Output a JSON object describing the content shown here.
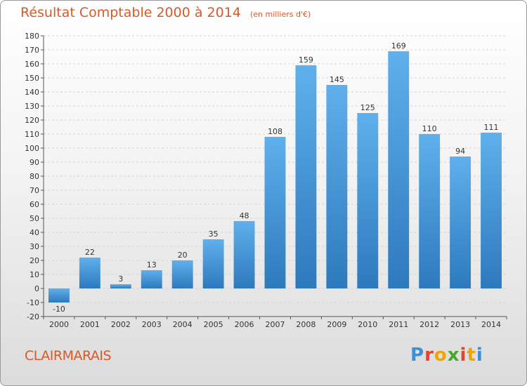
{
  "header": {
    "title": "Résultat Comptable 2000 à 2014",
    "unit": "(en milliers d'€)"
  },
  "footer": {
    "commune": "CLAIRMARAIS",
    "brand": "Proxiti",
    "brand_colors": [
      "#3f8fd6",
      "#e0452e",
      "#f2a300",
      "#45a82d",
      "#e0452e",
      "#f2a300",
      "#3f8fd6"
    ]
  },
  "colors": {
    "bar_light": "#5fb0ec",
    "bar_dark": "#2d79bd",
    "grid": "#d4d4d4",
    "title": "#d65a2a"
  },
  "chart_data": {
    "type": "bar",
    "title": "Résultat Comptable 2000 à 2014",
    "ylabel": "(en milliers d'€)",
    "categories": [
      "2000",
      "2001",
      "2002",
      "2003",
      "2004",
      "2005",
      "2006",
      "2007",
      "2008",
      "2009",
      "2010",
      "2011",
      "2012",
      "2013",
      "2014"
    ],
    "values": [
      -10,
      22,
      3,
      13,
      20,
      35,
      48,
      108,
      159,
      145,
      125,
      169,
      110,
      94,
      111
    ],
    "ylim": [
      -20,
      180
    ],
    "ytick_step": 10,
    "grid": true
  }
}
